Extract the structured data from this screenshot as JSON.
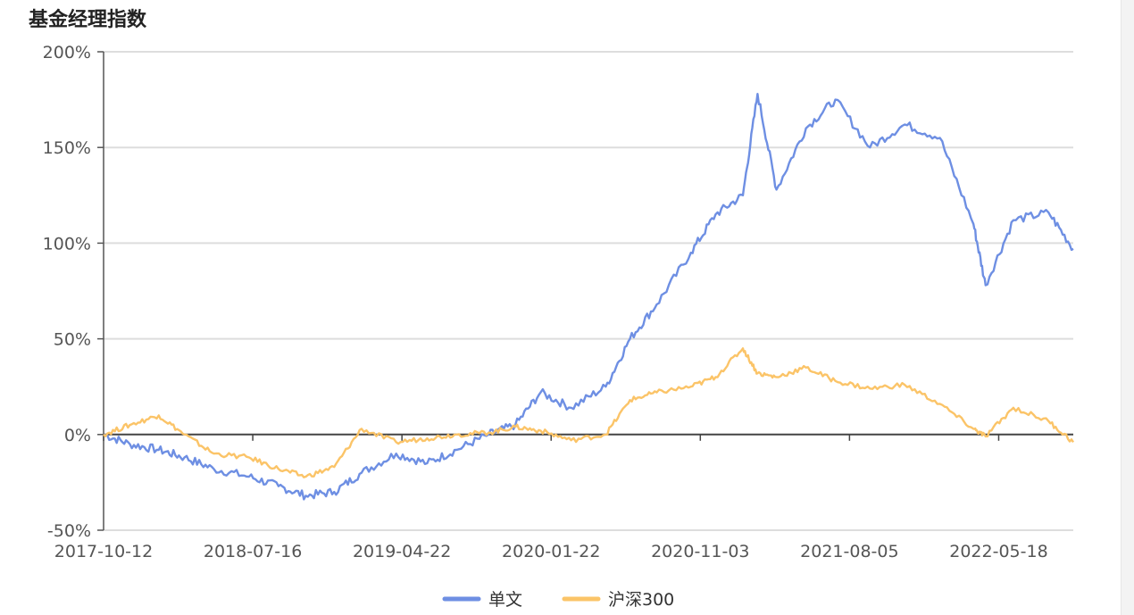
{
  "title": "基金经理指数",
  "colors": {
    "series1": "#6e8fe3",
    "series2": "#fbc468",
    "grid": "#dddddd",
    "axis": "#555555",
    "zero": "#444444"
  },
  "chart_data": {
    "type": "line",
    "title": "基金经理指数",
    "xlabel": "",
    "ylabel": "",
    "ylim": [
      -50,
      200
    ],
    "yticks": [
      -50,
      0,
      50,
      100,
      150,
      200
    ],
    "y_tick_labels": [
      "-50%",
      "0%",
      "50%",
      "100%",
      "150%",
      "200%"
    ],
    "x_tick_labels": [
      "2017-10-12",
      "2018-07-16",
      "2019-04-22",
      "2020-01-22",
      "2020-11-03",
      "2021-08-05",
      "2022-05-18"
    ],
    "grid": true,
    "legend_position": "bottom-center",
    "x": [
      "2017-10-12",
      "2017-12-01",
      "2018-01-25",
      "2018-03-15",
      "2018-05-10",
      "2018-07-16",
      "2018-09-10",
      "2018-11-01",
      "2018-12-25",
      "2019-02-15",
      "2019-04-22",
      "2019-06-20",
      "2019-08-15",
      "2019-10-15",
      "2019-12-05",
      "2020-01-22",
      "2020-03-20",
      "2020-05-25",
      "2020-07-10",
      "2020-08-30",
      "2020-11-03",
      "2020-12-20",
      "2021-02-10",
      "2021-03-10",
      "2021-04-15",
      "2021-06-10",
      "2021-08-05",
      "2021-10-10",
      "2021-12-15",
      "2022-02-20",
      "2022-04-25",
      "2022-05-18",
      "2022-07-10",
      "2022-09-15",
      "2022-11-01"
    ],
    "series": [
      {
        "name": "单文",
        "values": [
          0,
          -5,
          -8,
          -12,
          -18,
          -22,
          -27,
          -32,
          -30,
          -20,
          -10,
          -15,
          -8,
          0,
          5,
          22,
          14,
          25,
          50,
          68,
          95,
          115,
          125,
          178,
          128,
          160,
          175,
          150,
          162,
          155,
          110,
          78,
          112,
          116,
          97
        ]
      },
      {
        "name": "沪深300",
        "values": [
          0,
          5,
          10,
          0,
          -10,
          -12,
          -18,
          -22,
          -17,
          3,
          -4,
          -2,
          0,
          1,
          4,
          2,
          -3,
          0,
          18,
          22,
          25,
          30,
          45,
          32,
          30,
          35,
          28,
          24,
          26,
          16,
          3,
          -1,
          14,
          7,
          -4
        ]
      }
    ]
  }
}
